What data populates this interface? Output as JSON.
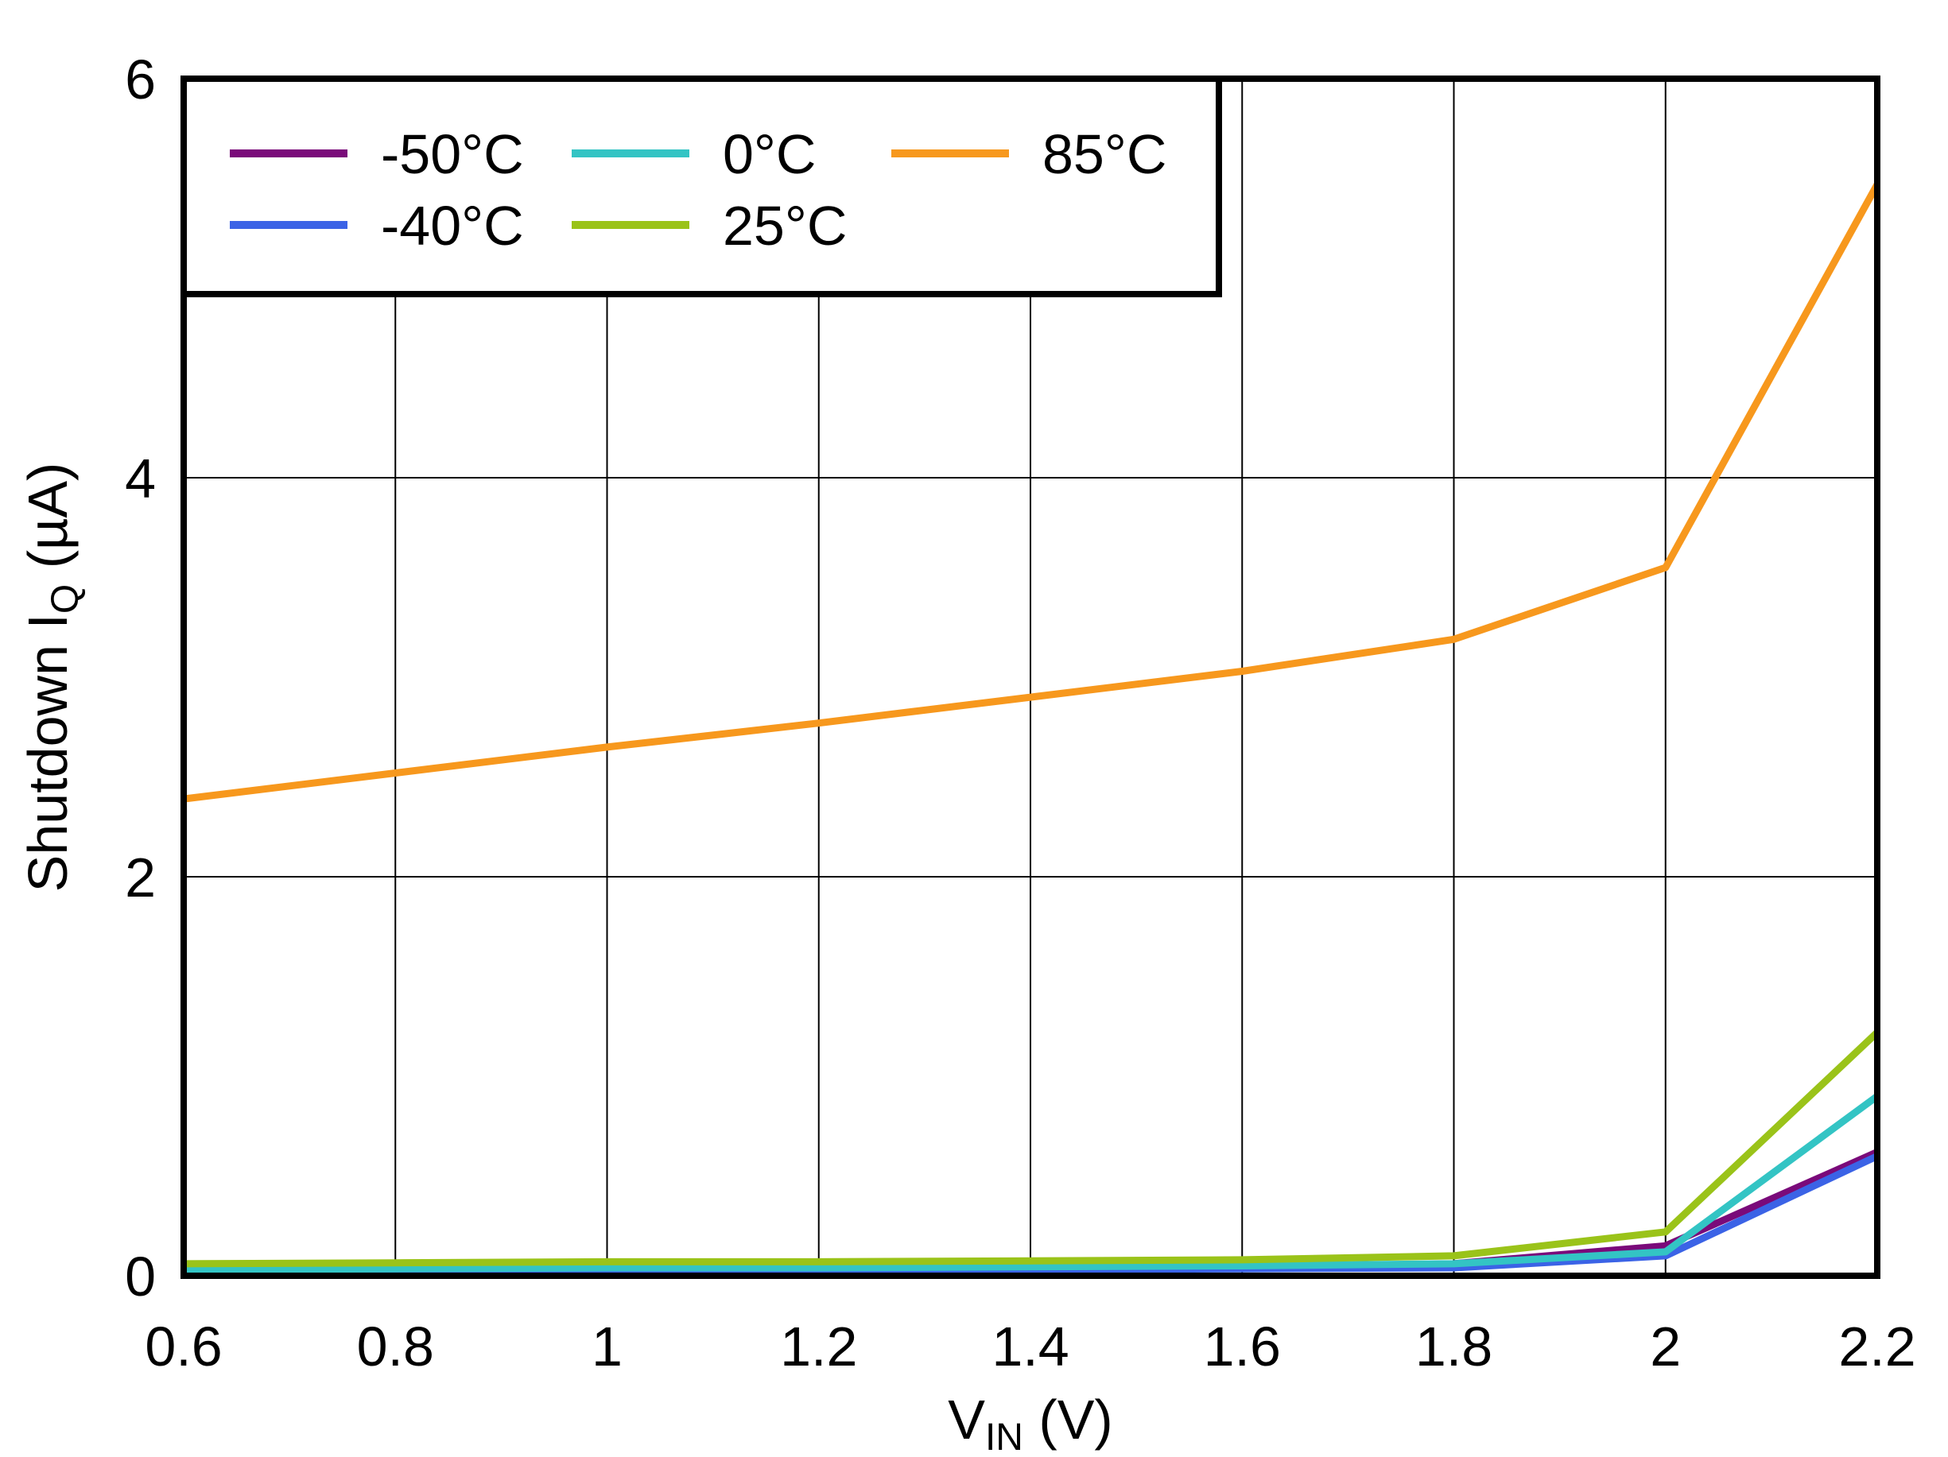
{
  "chart_data": {
    "type": "line",
    "title": "",
    "xlabel": {
      "main": "V",
      "sub": "IN",
      "suffix": " (V)"
    },
    "ylabel": {
      "main": "Shutdown I",
      "sub": "Q",
      "suffix": " (µA)"
    },
    "xlim": [
      0.6,
      2.2
    ],
    "ylim": [
      0,
      6
    ],
    "x_ticks": [
      0.6,
      0.8,
      1,
      1.2,
      1.4,
      1.6,
      1.8,
      2,
      2.2
    ],
    "x_tick_labels": [
      "0.6",
      "0.8",
      "1",
      "1.2",
      "1.4",
      "1.6",
      "1.8",
      "2",
      "2.2"
    ],
    "y_ticks": [
      0,
      2,
      4,
      6
    ],
    "y_tick_labels": [
      "0",
      "2",
      "4",
      "6"
    ],
    "grid": true,
    "legend_position": "top-left",
    "x": [
      0.6,
      0.8,
      1.0,
      1.2,
      1.4,
      1.6,
      1.8,
      2.0,
      2.2
    ],
    "series": [
      {
        "name": "-50°C",
        "color": "#7a0a7a",
        "values": [
          0.02,
          0.025,
          0.03,
          0.03,
          0.035,
          0.04,
          0.06,
          0.15,
          0.62
        ]
      },
      {
        "name": "-40°C",
        "color": "#3b63e6",
        "values": [
          0.015,
          0.02,
          0.025,
          0.025,
          0.03,
          0.035,
          0.04,
          0.1,
          0.6
        ]
      },
      {
        "name": "0°C",
        "color": "#33c4c4",
        "values": [
          0.03,
          0.035,
          0.04,
          0.04,
          0.045,
          0.05,
          0.06,
          0.12,
          0.9
        ]
      },
      {
        "name": "25°C",
        "color": "#9ac319",
        "values": [
          0.06,
          0.065,
          0.07,
          0.07,
          0.075,
          0.08,
          0.1,
          0.22,
          1.22
        ]
      },
      {
        "name": "85°C",
        "color": "#f7981d",
        "values": [
          2.39,
          2.52,
          2.65,
          2.77,
          2.9,
          3.03,
          3.19,
          3.55,
          5.47
        ]
      }
    ]
  }
}
